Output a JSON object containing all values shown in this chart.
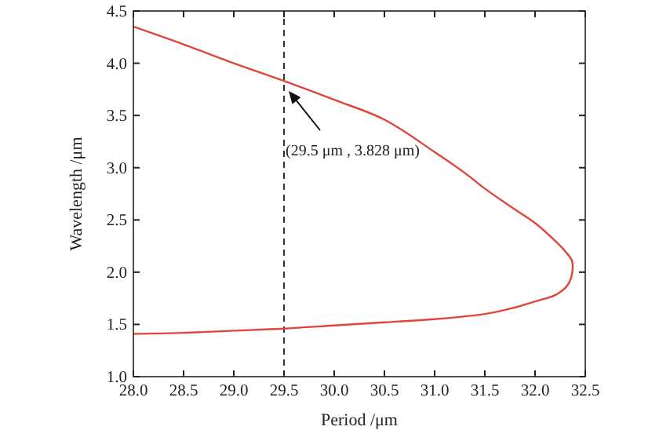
{
  "chart_data": {
    "type": "line",
    "xlabel": "Period /μm",
    "ylabel": "Wavelength /μm",
    "xlim": [
      28.0,
      32.5
    ],
    "ylim": [
      1.0,
      4.5
    ],
    "xticks": [
      {
        "value": 28,
        "label": "28.0"
      },
      {
        "value": 28.5,
        "label": "28.5"
      },
      {
        "value": 29,
        "label": "29.0"
      },
      {
        "value": 29.5,
        "label": "29.5"
      },
      {
        "value": 30,
        "label": "30.0"
      },
      {
        "value": 30.5,
        "label": "30.5"
      },
      {
        "value": 31,
        "label": "31.0"
      },
      {
        "value": 31.5,
        "label": "31.5"
      },
      {
        "value": 32,
        "label": "32.0"
      },
      {
        "value": 32.5,
        "label": "32.5"
      }
    ],
    "yticks": [
      {
        "value": 1,
        "label": "1.0"
      },
      {
        "value": 1.5,
        "label": "1.5"
      },
      {
        "value": 2,
        "label": "2.0"
      },
      {
        "value": 2.5,
        "label": "2.5"
      },
      {
        "value": 3,
        "label": "3.0"
      },
      {
        "value": 3.5,
        "label": "3.5"
      },
      {
        "value": 4,
        "label": "4.0"
      },
      {
        "value": 4.5,
        "label": "4.5"
      }
    ],
    "series": [
      {
        "color": "#e0453a",
        "x": [
          28.0,
          28.5,
          29.0,
          29.5,
          30.0,
          30.5,
          31.0,
          31.3,
          31.5,
          31.8,
          32.0,
          32.2,
          32.3,
          32.37,
          32.34,
          32.22,
          32.0,
          31.75,
          31.5,
          31.0,
          30.5,
          30.0,
          29.5,
          29.0,
          28.5,
          28.0
        ],
        "values": [
          4.35,
          4.18,
          4.0,
          3.83,
          3.65,
          3.46,
          3.15,
          2.95,
          2.8,
          2.6,
          2.47,
          2.3,
          2.2,
          2.1,
          1.9,
          1.79,
          1.72,
          1.65,
          1.6,
          1.55,
          1.52,
          1.49,
          1.46,
          1.44,
          1.42,
          1.41
        ]
      }
    ],
    "ref_lines": [
      {
        "axis": "x",
        "value": 29.5,
        "color": "#333333",
        "line_style": "dashed"
      }
    ],
    "annotations": [
      "(29.5 μm , 3.828 μm)"
    ],
    "line_style": "solid",
    "grid": false
  }
}
